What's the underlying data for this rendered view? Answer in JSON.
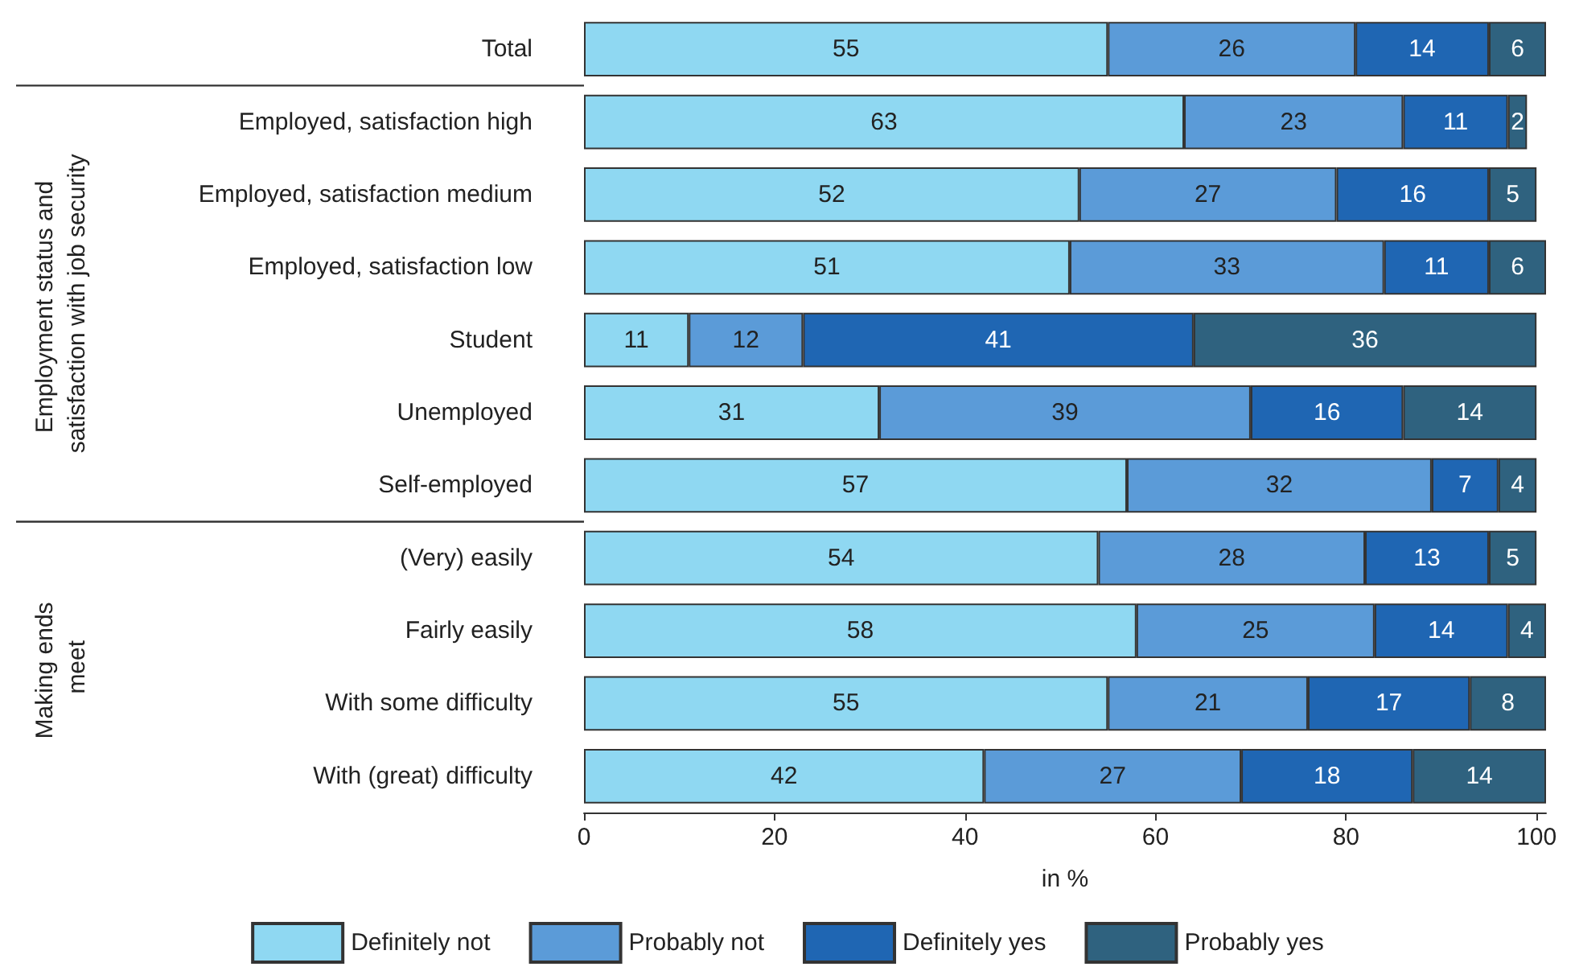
{
  "chart_data": {
    "type": "bar",
    "orientation": "horizontal",
    "stacked": true,
    "data_labels": true,
    "xlabel": "in %",
    "categories": [
      "Total",
      "Employed, satisfaction high",
      "Employed, satisfaction medium",
      "Employed, satisfaction low",
      "Student",
      "Unemployed",
      "Self-employed",
      "(Very) easily",
      "Fairly easily",
      "With some difficulty",
      "With (great) difficulty"
    ],
    "series": [
      {
        "name": "Definitely not",
        "color": "#8fd8f2",
        "values": [
          55,
          63,
          52,
          51,
          11,
          31,
          57,
          54,
          58,
          55,
          42
        ]
      },
      {
        "name": "Probably not",
        "color": "#5b9bd8",
        "values": [
          26,
          23,
          27,
          33,
          12,
          39,
          32,
          28,
          25,
          21,
          27
        ]
      },
      {
        "name": "Definitely yes",
        "color": "#1f66b3",
        "values": [
          14,
          11,
          16,
          11,
          41,
          16,
          7,
          13,
          14,
          17,
          18
        ]
      },
      {
        "name": "Probably yes",
        "color": "#2f627f",
        "values": [
          6,
          2,
          5,
          6,
          36,
          14,
          4,
          5,
          4,
          8,
          14
        ]
      }
    ],
    "xlim": [
      0,
      101
    ],
    "xticks": [
      0,
      20,
      40,
      60,
      80,
      100
    ],
    "grid": false,
    "legend": "bottom",
    "annotations": [
      "Employment status and satisfaction with job security",
      "Making ends meet"
    ]
  }
}
